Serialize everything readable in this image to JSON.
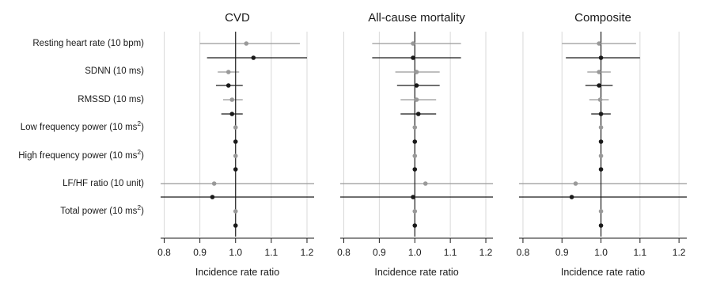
{
  "chart_data": {
    "type": "forest",
    "xlim": [
      0.79,
      1.22
    ],
    "xticks": [
      0.8,
      0.9,
      1.0,
      1.1,
      1.2
    ],
    "tick_labels": [
      "0.8",
      "0.9",
      "1.0",
      "1.1",
      "1.2"
    ],
    "grid": "vertical",
    "reference_line": 1.0,
    "rows": [
      {
        "label": "Resting heart rate (10 bpm)",
        "sup": ""
      },
      {
        "label": "SDNN (10 ms)",
        "sup": ""
      },
      {
        "label": "RMSSD (10 ms)",
        "sup": ""
      },
      {
        "label": "Low frequency power (10 ms",
        "sup": "2",
        "close": ")"
      },
      {
        "label": "High frequency power (10 ms",
        "sup": "2",
        "close": ")"
      },
      {
        "label": "LF/HF ratio (10 unit)",
        "sup": ""
      },
      {
        "label": "Total power (10 ms",
        "sup": "2",
        "close": ")"
      }
    ],
    "colors": {
      "gray": "#999999",
      "black": "#1a1a1a"
    },
    "panels": [
      {
        "title": "CVD",
        "xlabel": "Incidence rate ratio",
        "gray": [
          {
            "est": 1.03,
            "lo": 0.9,
            "hi": 1.18
          },
          {
            "est": 0.98,
            "lo": 0.95,
            "hi": 1.01
          },
          {
            "est": 0.99,
            "lo": 0.965,
            "hi": 1.02
          },
          {
            "est": 1.0,
            "lo": 0.998,
            "hi": 1.002
          },
          {
            "est": 1.0,
            "lo": 0.998,
            "hi": 1.002
          },
          {
            "est": 0.94,
            "lo": 0.79,
            "hi": 1.22
          },
          {
            "est": 1.0,
            "lo": 0.998,
            "hi": 1.002
          }
        ],
        "black": [
          {
            "est": 1.05,
            "lo": 0.92,
            "hi": 1.2
          },
          {
            "est": 0.98,
            "lo": 0.945,
            "hi": 1.02
          },
          {
            "est": 0.99,
            "lo": 0.96,
            "hi": 1.02
          },
          {
            "est": 1.0,
            "lo": 0.998,
            "hi": 1.002
          },
          {
            "est": 1.0,
            "lo": 0.998,
            "hi": 1.002
          },
          {
            "est": 0.935,
            "lo": 0.79,
            "hi": 1.22
          },
          {
            "est": 1.0,
            "lo": 0.998,
            "hi": 1.002
          }
        ]
      },
      {
        "title": "All-cause mortality",
        "xlabel": "Incidence rate ratio",
        "gray": [
          {
            "est": 0.995,
            "lo": 0.88,
            "hi": 1.13
          },
          {
            "est": 1.005,
            "lo": 0.945,
            "hi": 1.07
          },
          {
            "est": 1.005,
            "lo": 0.96,
            "hi": 1.06
          },
          {
            "est": 1.0,
            "lo": 0.998,
            "hi": 1.002
          },
          {
            "est": 1.0,
            "lo": 0.998,
            "hi": 1.002
          },
          {
            "est": 1.03,
            "lo": 0.79,
            "hi": 1.22
          },
          {
            "est": 1.0,
            "lo": 0.998,
            "hi": 1.002
          }
        ],
        "black": [
          {
            "est": 0.995,
            "lo": 0.88,
            "hi": 1.13
          },
          {
            "est": 1.005,
            "lo": 0.95,
            "hi": 1.07
          },
          {
            "est": 1.01,
            "lo": 0.96,
            "hi": 1.06
          },
          {
            "est": 1.0,
            "lo": 0.998,
            "hi": 1.002
          },
          {
            "est": 1.0,
            "lo": 0.998,
            "hi": 1.002
          },
          {
            "est": 0.995,
            "lo": 0.79,
            "hi": 1.22
          },
          {
            "est": 1.0,
            "lo": 0.998,
            "hi": 1.002
          }
        ]
      },
      {
        "title": "Composite",
        "xlabel": "Incidence rate ratio",
        "gray": [
          {
            "est": 0.995,
            "lo": 0.9,
            "hi": 1.09
          },
          {
            "est": 0.995,
            "lo": 0.965,
            "hi": 1.025
          },
          {
            "est": 0.998,
            "lo": 0.97,
            "hi": 1.02
          },
          {
            "est": 1.0,
            "lo": 0.998,
            "hi": 1.002
          },
          {
            "est": 1.0,
            "lo": 0.998,
            "hi": 1.002
          },
          {
            "est": 0.935,
            "lo": 0.79,
            "hi": 1.22
          },
          {
            "est": 1.0,
            "lo": 0.998,
            "hi": 1.002
          }
        ],
        "black": [
          {
            "est": 1.0,
            "lo": 0.91,
            "hi": 1.1
          },
          {
            "est": 0.995,
            "lo": 0.96,
            "hi": 1.03
          },
          {
            "est": 1.0,
            "lo": 0.975,
            "hi": 1.025
          },
          {
            "est": 1.0,
            "lo": 0.998,
            "hi": 1.002
          },
          {
            "est": 1.0,
            "lo": 0.998,
            "hi": 1.002
          },
          {
            "est": 0.925,
            "lo": 0.79,
            "hi": 1.22
          },
          {
            "est": 1.0,
            "lo": 0.998,
            "hi": 1.002
          }
        ]
      }
    ]
  }
}
